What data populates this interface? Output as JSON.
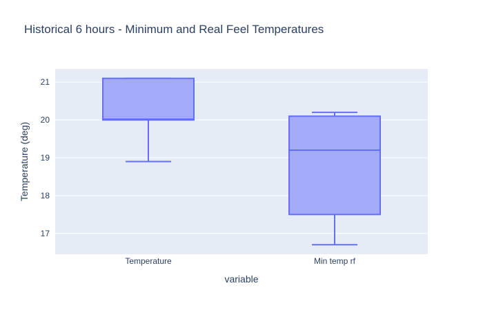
{
  "chart_data": {
    "type": "box",
    "title": "Historical 6 hours - Minimum and Real Feel Temperatures",
    "xlabel": "variable",
    "ylabel": "Temperature (deg)",
    "categories": [
      "Temperature",
      "Min temp rf"
    ],
    "yticks": [
      17,
      18,
      19,
      20,
      21
    ],
    "ylim": [
      16.45,
      21.35
    ],
    "grid": true,
    "colors": {
      "box_fill": "#a3abf9",
      "box_line": "#636efa",
      "plot_bg": "#e5ecf6",
      "grid": "#ffffff"
    },
    "series": [
      {
        "category": "Temperature",
        "min": 18.9,
        "q1": 20.0,
        "median": 20.02,
        "q3": 21.1,
        "max": 21.1
      },
      {
        "category": "Min temp rf",
        "min": 16.7,
        "q1": 17.5,
        "median": 19.2,
        "q3": 20.1,
        "max": 20.2
      }
    ]
  }
}
